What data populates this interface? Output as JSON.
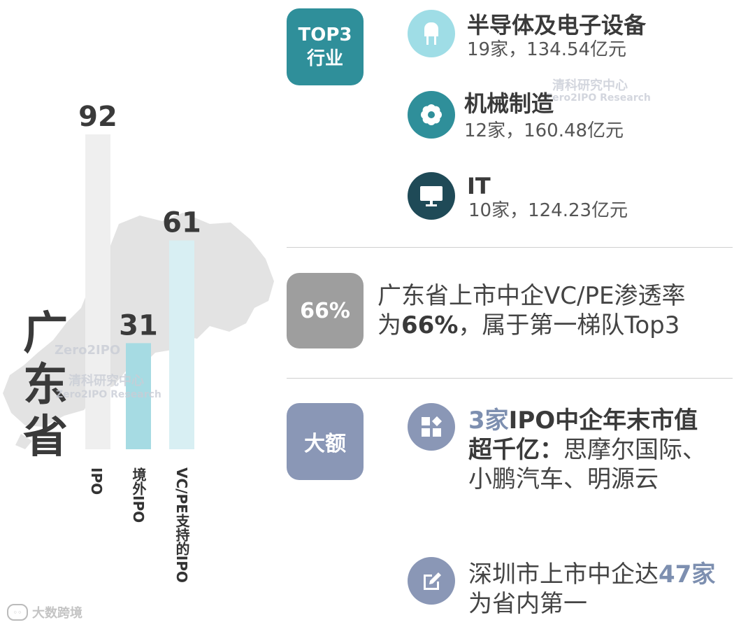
{
  "province": "广东省",
  "chart_data": {
    "type": "bar",
    "categories": [
      "IPO",
      "境外IPO",
      "VC/PE支持的IPO"
    ],
    "values": [
      92,
      31,
      61
    ],
    "ylim": [
      0,
      92
    ],
    "colors": [
      "#efefef",
      "#a6dbe3",
      "#d8eff3"
    ],
    "value_color": "#3a3a3a",
    "grid": false
  },
  "top3": {
    "badge_line1": "TOP3",
    "badge_line2": "行业",
    "badge_color": "#2f8f9a",
    "industries": [
      {
        "name": "半导体及电子设备",
        "stat": "19家，134.54亿元",
        "icon": "chip-icon",
        "color": "#9fdde6"
      },
      {
        "name": "机械制造",
        "stat": "12家，160.48亿元",
        "icon": "gear-icon",
        "color": "#2f8f9a"
      },
      {
        "name": "IT",
        "stat": "10家，124.23亿元",
        "icon": "monitor-icon",
        "color": "#1f4a57"
      }
    ]
  },
  "vcpe": {
    "badge": "66%",
    "badge_color": "#9e9e9e",
    "line1": "广东省上市中企VC/PE渗透率",
    "line2_pre": "为",
    "line2_bold": "66%",
    "line2_post": "，属于第一梯队Top3"
  },
  "large": {
    "badge": "大额",
    "badge_color": "#8a97b6",
    "item1": {
      "hl": "3家",
      "bold1": "IPO中企年末市值",
      "bold2": "超千亿：",
      "rest1": "思摩尔国际、",
      "rest2": "小鹏汽车、明源云",
      "icon": "grid-icon"
    },
    "item2": {
      "pre": "深圳市上市中企达",
      "hl": "47家",
      "line2": "为省内第一",
      "icon": "edit-icon"
    }
  },
  "watermark": {
    "brand": "Zero2IPO",
    "cn": "清科研究中心",
    "en": "Zero2IPO Research"
  },
  "corner_logo": "大数跨境"
}
